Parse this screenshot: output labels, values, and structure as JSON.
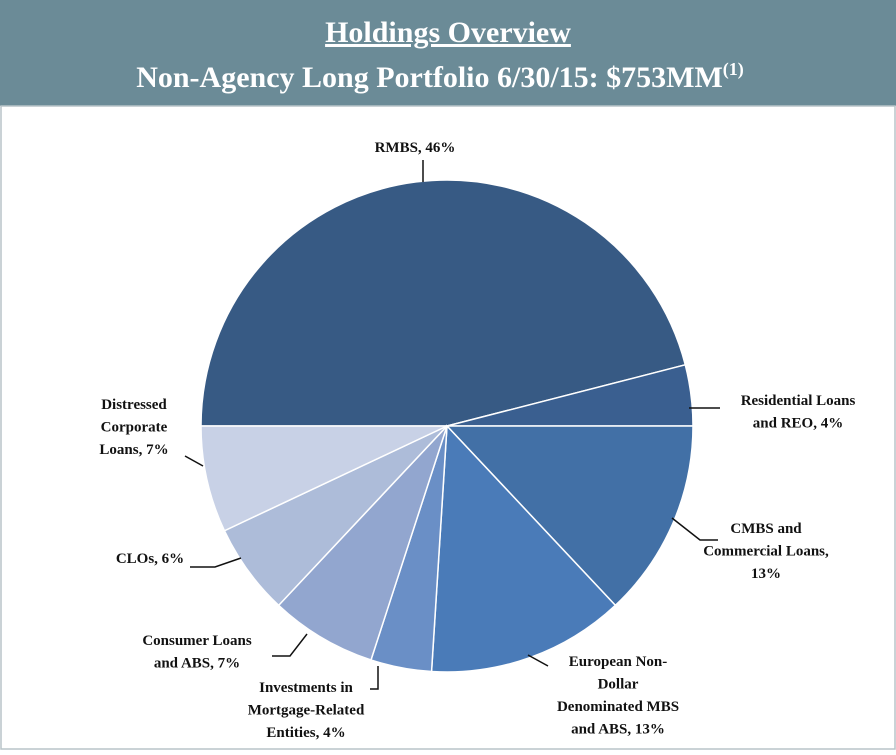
{
  "chart_data": {
    "type": "pie",
    "title": "Holdings Overview",
    "subtitle": "Non-Agency Long Portfolio 6/30/15: $753MM",
    "footnote_marker": "(1)",
    "start_angle": "left",
    "direction": "clockwise",
    "values": [
      46,
      4,
      13,
      13,
      4,
      7,
      6,
      7
    ],
    "labels": [
      [
        "RMBS, 46%"
      ],
      [
        "Residential Loans",
        "and REO, 4%"
      ],
      [
        "CMBS and",
        "Commercial Loans,",
        "13%"
      ],
      [
        "European Non-",
        "Dollar",
        "Denominated MBS",
        "and ABS, 13%"
      ],
      [
        "Investments in",
        "Mortgage-Related",
        "Entities, 4%"
      ],
      [
        "Consumer Loans",
        "and ABS, 7%"
      ],
      [
        "CLOs, 6%"
      ],
      [
        "Distressed",
        "Corporate",
        "Loans, 7%"
      ]
    ],
    "colors": [
      "#375a84",
      "#3a5f90",
      "#4270a6",
      "#4a7bb8",
      "#6a8fc6",
      "#92a6cf",
      "#adbcd9",
      "#c8d1e6"
    ]
  }
}
